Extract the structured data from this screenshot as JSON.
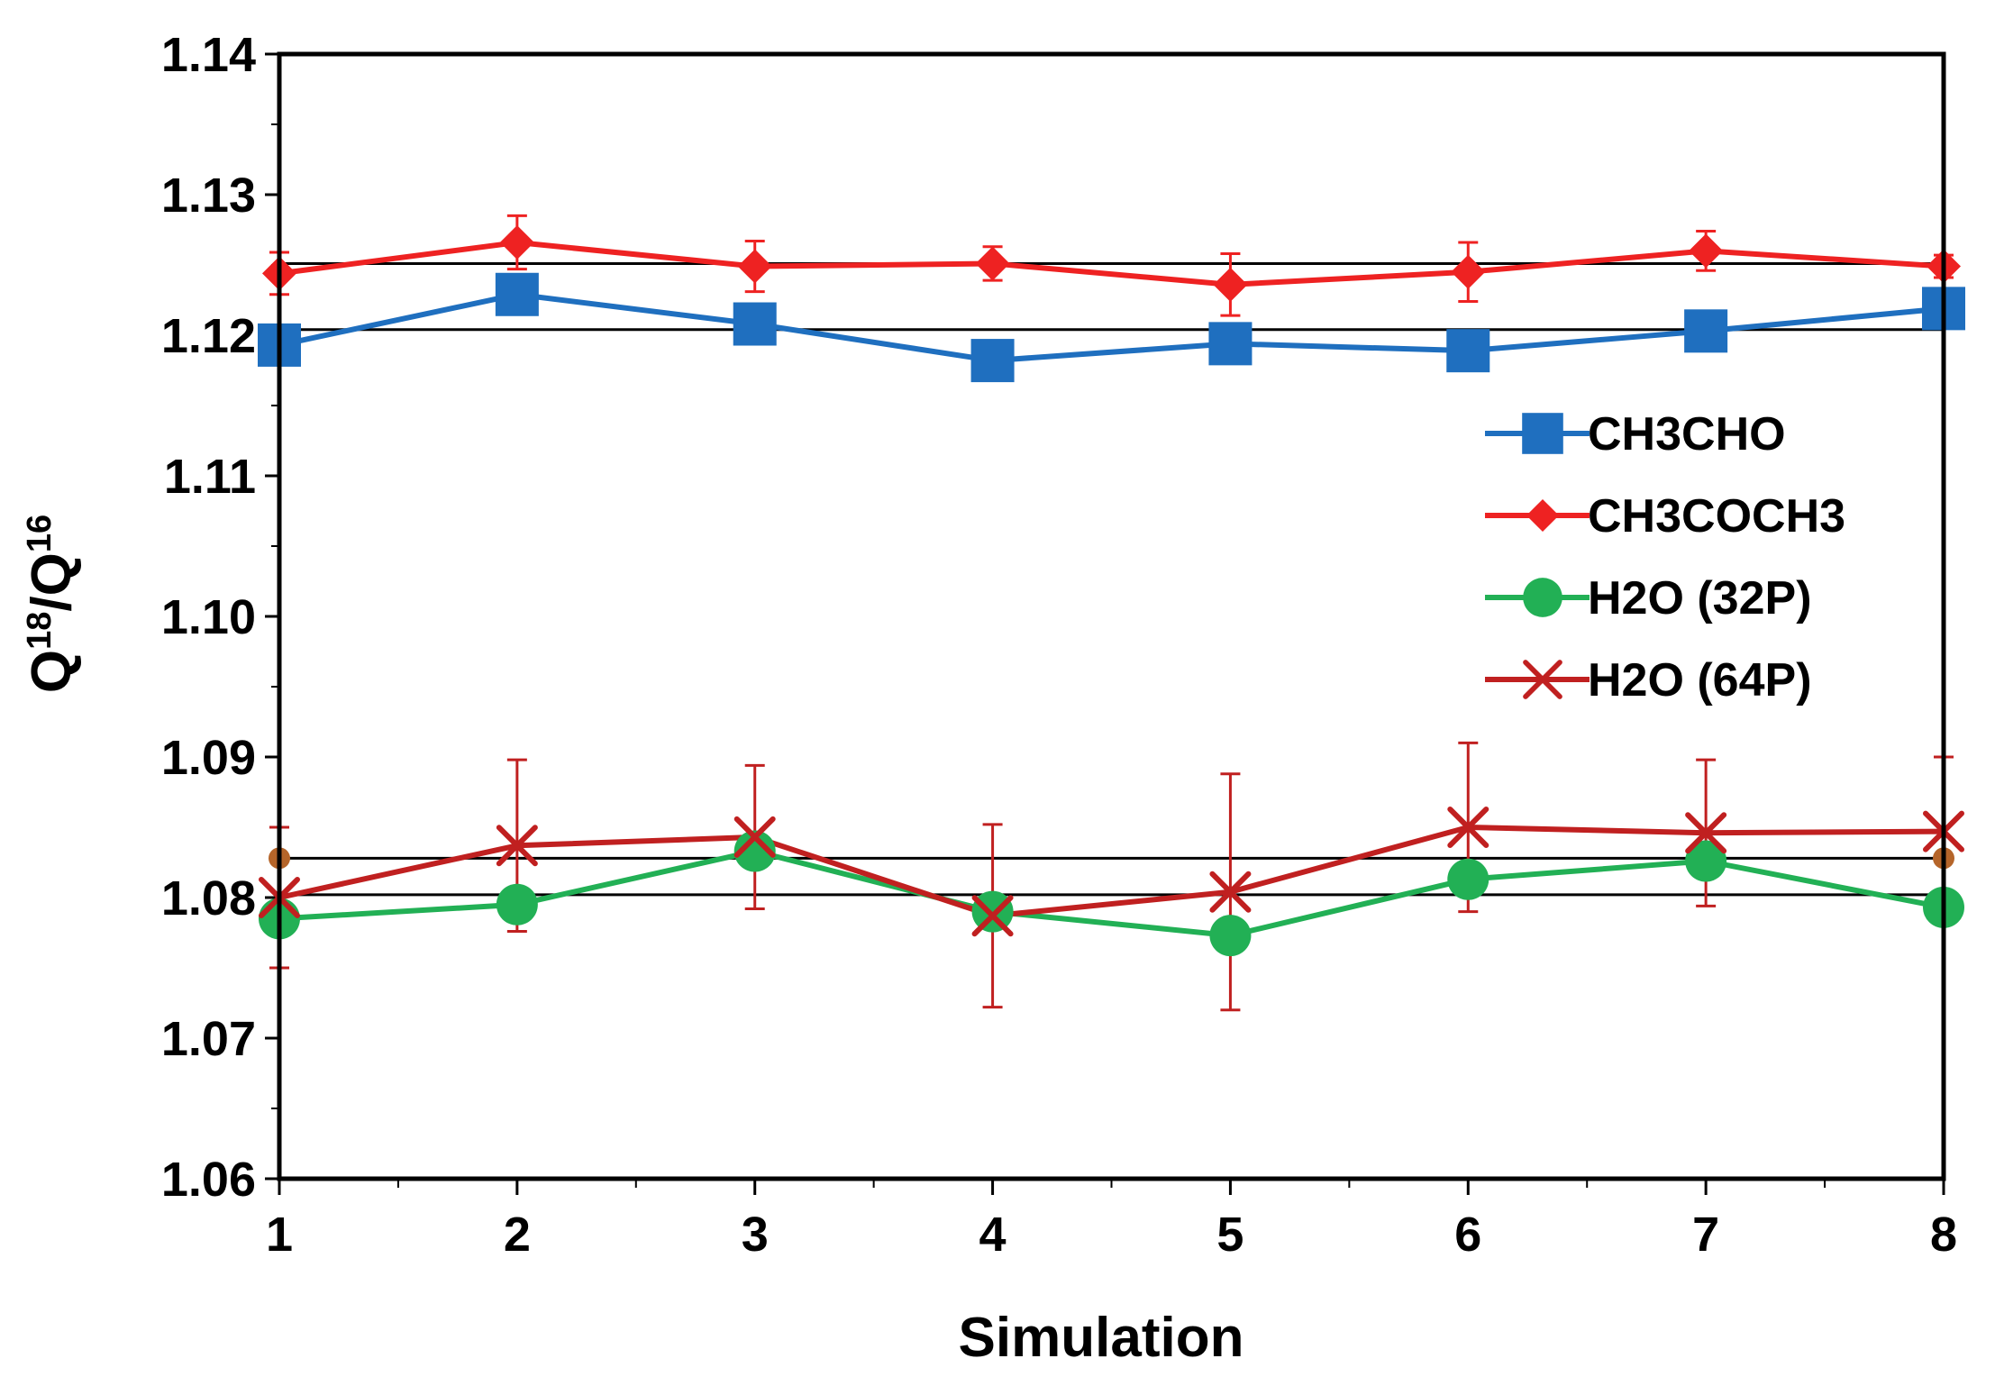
{
  "chart_data": {
    "type": "line",
    "title": "",
    "xlabel": "Simulation",
    "ylabel": {
      "base": "Q",
      "sup1": "18",
      "sep": "/Q",
      "sup2": "16"
    },
    "x": [
      1,
      2,
      3,
      4,
      5,
      6,
      7,
      8
    ],
    "xticks": [
      "1",
      "2",
      "3",
      "4",
      "5",
      "6",
      "7",
      "8"
    ],
    "ylim": [
      1.06,
      1.14
    ],
    "yticks": [
      "1.06",
      "1.07",
      "1.08",
      "1.09",
      "1.10",
      "1.11",
      "1.12",
      "1.13",
      "1.14"
    ],
    "grid": false,
    "legend": "right",
    "reference_lines": [
      1.1251,
      1.1204,
      1.0828,
      1.0802
    ],
    "reference_points": [
      {
        "x": 1,
        "y": 1.0828,
        "color": "#b5652a"
      },
      {
        "x": 8,
        "y": 1.0828,
        "color": "#b5652a"
      }
    ],
    "series": [
      {
        "name": "CH3CHO",
        "color": "#1f6fbf",
        "marker": "square",
        "values": [
          1.1193,
          1.1229,
          1.1208,
          1.1182,
          1.1194,
          1.1189,
          1.1203,
          1.1219
        ],
        "errors": null
      },
      {
        "name": "CH3COCH3",
        "color": "#ee2222",
        "marker": "diamond",
        "values": [
          1.1244,
          1.1266,
          1.1249,
          1.1251,
          1.1236,
          1.1245,
          1.126,
          1.1249
        ],
        "errors": [
          0.0015,
          0.0019,
          0.0018,
          0.0012,
          0.0022,
          0.0021,
          0.0014,
          0.0008
        ]
      },
      {
        "name": "H2O (32P)",
        "color": "#22b055",
        "marker": "circle",
        "values": [
          1.0785,
          1.0795,
          1.0833,
          1.079,
          1.0773,
          1.0813,
          1.0826,
          1.0793
        ],
        "errors": null
      },
      {
        "name": "H2O (64P)",
        "color": "#c02020",
        "marker": "x",
        "values": [
          1.08,
          1.0837,
          1.0843,
          1.0787,
          1.0804,
          1.085,
          1.0846,
          1.0847
        ],
        "errors": [
          0.005,
          0.0061,
          0.0051,
          0.0065,
          0.0084,
          0.006,
          0.0052,
          0.0053
        ]
      }
    ]
  }
}
